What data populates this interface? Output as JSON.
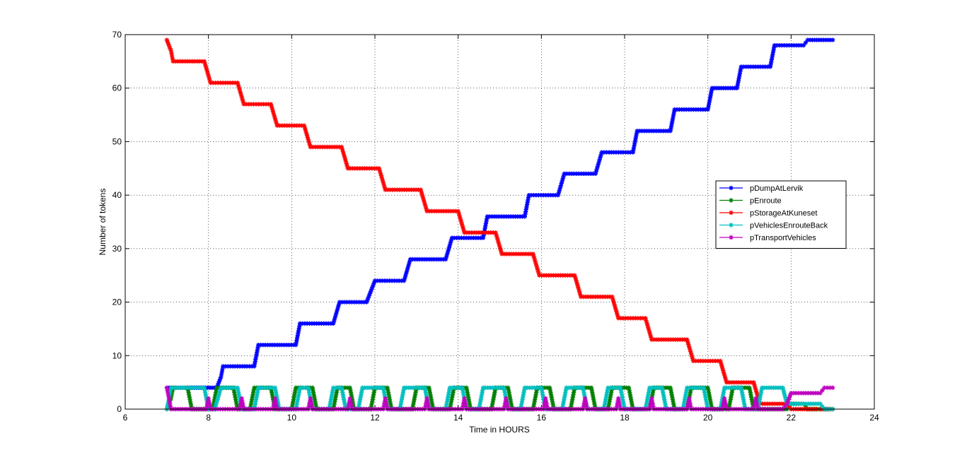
{
  "chart_data": {
    "type": "line",
    "title": "",
    "xlabel": "Time in HOURS",
    "ylabel": "Number of tokens",
    "xlim": [
      6,
      24
    ],
    "ylim": [
      0,
      70
    ],
    "xticks": [
      6,
      8,
      10,
      12,
      14,
      16,
      18,
      20,
      22,
      24
    ],
    "yticks": [
      0,
      10,
      20,
      30,
      40,
      50,
      60,
      70
    ],
    "grid": true,
    "grid_style": "dotted",
    "legend_position": "right",
    "marker": "*",
    "series": [
      {
        "name": "pDumpAtLervik",
        "color": "#0000ff",
        "x": [
          7.0,
          8.2,
          8.3,
          8.35,
          9.1,
          9.2,
          10.1,
          10.2,
          11.0,
          11.15,
          11.8,
          12.0,
          12.7,
          12.85,
          13.7,
          13.85,
          14.6,
          14.7,
          15.6,
          15.7,
          16.4,
          16.55,
          17.3,
          17.45,
          18.2,
          18.3,
          19.1,
          19.2,
          20.0,
          20.1,
          20.7,
          20.8,
          21.5,
          21.6,
          22.3,
          22.4,
          23.0
        ],
        "y": [
          4,
          4,
          6,
          8,
          8,
          12,
          12,
          16,
          16,
          20,
          20,
          24,
          24,
          28,
          28,
          32,
          32,
          36,
          36,
          40,
          40,
          44,
          44,
          48,
          48,
          52,
          52,
          56,
          56,
          60,
          60,
          64,
          64,
          68,
          68,
          69,
          69
        ]
      },
      {
        "name": "pEnroute",
        "color": "#007f00",
        "x": [
          7.0,
          7.1,
          7.15,
          7.5,
          7.6,
          8.1,
          8.2,
          8.6,
          8.7,
          9.0,
          9.1,
          9.5,
          9.6,
          10.0,
          10.1,
          10.5,
          10.6,
          11.0,
          11.1,
          11.4,
          11.5,
          11.9,
          12.0,
          12.3,
          12.4,
          12.9,
          13.0,
          13.3,
          13.4,
          13.8,
          13.9,
          14.2,
          14.3,
          14.8,
          14.9,
          15.2,
          15.3,
          15.8,
          15.9,
          16.2,
          16.3,
          16.7,
          16.8,
          17.2,
          17.3,
          17.6,
          17.7,
          18.1,
          18.2,
          18.6,
          18.7,
          19.1,
          19.2,
          19.5,
          19.6,
          20.0,
          20.1,
          20.5,
          20.6,
          21.0,
          21.1,
          21.9,
          22.0,
          22.3,
          22.4,
          23.0
        ],
        "y": [
          0,
          2,
          4,
          4,
          0,
          0,
          4,
          4,
          0,
          0,
          4,
          4,
          0,
          0,
          4,
          4,
          0,
          0,
          4,
          4,
          0,
          0,
          4,
          4,
          0,
          0,
          4,
          4,
          0,
          0,
          4,
          4,
          0,
          0,
          4,
          4,
          0,
          0,
          4,
          4,
          0,
          0,
          4,
          4,
          0,
          0,
          4,
          4,
          0,
          0,
          4,
          4,
          0,
          0,
          4,
          4,
          0,
          0,
          4,
          4,
          0,
          0,
          1,
          1,
          0,
          0
        ]
      },
      {
        "name": "pStorageAtKuneset",
        "color": "#ff0000",
        "x": [
          7.0,
          7.1,
          7.15,
          7.9,
          8.05,
          8.7,
          8.85,
          9.5,
          9.65,
          10.3,
          10.45,
          11.2,
          11.35,
          12.1,
          12.25,
          13.1,
          13.25,
          14.0,
          14.15,
          14.9,
          15.05,
          15.8,
          15.95,
          16.8,
          16.95,
          17.7,
          17.85,
          18.5,
          18.65,
          19.5,
          19.65,
          20.3,
          20.45,
          21.1,
          21.25,
          21.9,
          22.0,
          22.6,
          22.7,
          23.0
        ],
        "y": [
          69,
          67,
          65,
          65,
          61,
          61,
          57,
          57,
          53,
          53,
          49,
          49,
          45,
          45,
          41,
          41,
          37,
          37,
          33,
          33,
          29,
          29,
          25,
          25,
          21,
          21,
          17,
          17,
          13,
          13,
          9,
          9,
          5,
          5,
          1,
          1,
          0,
          0,
          0,
          0
        ]
      },
      {
        "name": "pVehiclesEnrouteBack",
        "color": "#00bfbf",
        "x": [
          7.0,
          7.05,
          7.1,
          7.9,
          8.0,
          8.15,
          8.3,
          8.7,
          8.8,
          9.1,
          9.2,
          9.6,
          9.7,
          10.1,
          10.2,
          10.4,
          10.5,
          10.9,
          11.0,
          11.2,
          11.3,
          11.6,
          11.7,
          12.2,
          12.3,
          12.6,
          12.7,
          13.2,
          13.3,
          13.7,
          13.8,
          14.1,
          14.2,
          14.5,
          14.6,
          15.1,
          15.2,
          15.5,
          15.6,
          16.0,
          16.1,
          16.5,
          16.6,
          17.0,
          17.1,
          17.5,
          17.6,
          17.9,
          18.0,
          18.5,
          18.6,
          18.9,
          19.0,
          19.4,
          19.5,
          19.9,
          20.0,
          20.3,
          20.4,
          20.8,
          20.9,
          21.2,
          21.3,
          21.8,
          21.9,
          22.7,
          22.8,
          23.0
        ],
        "y": [
          0,
          2,
          4,
          4,
          0,
          0,
          4,
          4,
          0,
          0,
          4,
          4,
          0,
          0,
          4,
          4,
          0,
          0,
          4,
          4,
          0,
          0,
          4,
          4,
          0,
          0,
          4,
          4,
          0,
          0,
          4,
          4,
          0,
          0,
          4,
          4,
          0,
          0,
          4,
          4,
          0,
          0,
          4,
          4,
          0,
          0,
          4,
          4,
          0,
          0,
          4,
          4,
          0,
          0,
          4,
          4,
          0,
          0,
          4,
          4,
          0,
          0,
          4,
          4,
          1,
          1,
          0,
          0
        ]
      },
      {
        "name": "pTransportVehicles",
        "color": "#bf00bf",
        "x": [
          7.0,
          7.05,
          7.1,
          7.95,
          8.0,
          8.05,
          8.75,
          8.8,
          8.85,
          9.55,
          9.6,
          9.65,
          10.4,
          10.45,
          10.5,
          11.35,
          11.4,
          11.45,
          12.2,
          12.25,
          12.3,
          13.2,
          13.25,
          13.3,
          14.1,
          14.15,
          14.2,
          15.1,
          15.15,
          15.2,
          16.05,
          16.1,
          16.15,
          17.0,
          17.05,
          17.1,
          17.8,
          17.85,
          17.9,
          18.6,
          18.65,
          18.7,
          19.5,
          19.55,
          19.6,
          20.35,
          20.4,
          20.45,
          21.1,
          21.15,
          21.2,
          21.8,
          21.9,
          22.0,
          22.7,
          22.8,
          23.0
        ],
        "y": [
          4,
          2,
          0,
          0,
          2,
          0,
          0,
          2,
          0,
          0,
          2,
          0,
          0,
          2,
          0,
          0,
          2,
          0,
          0,
          2,
          0,
          0,
          2,
          0,
          0,
          2,
          0,
          0,
          2,
          0,
          0,
          2,
          0,
          0,
          2,
          0,
          0,
          2,
          0,
          0,
          2,
          0,
          0,
          2,
          0,
          0,
          2,
          0,
          0,
          2,
          0,
          0,
          1,
          3,
          3,
          4,
          4
        ]
      }
    ]
  }
}
